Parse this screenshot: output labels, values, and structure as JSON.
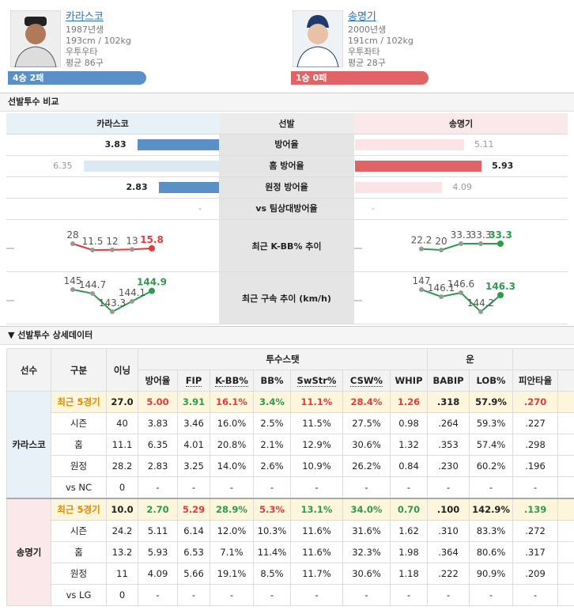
{
  "pitchers": [
    {
      "name": "카라스코",
      "born": "1987년생",
      "body": "193cm / 102kg",
      "hand": "우투우타",
      "avg_pitches": "평균 86구",
      "record": "4승 2패",
      "color": "#5b8fc7"
    },
    {
      "name": "송명기",
      "born": "2000년생",
      "body": "191cm / 102kg",
      "hand": "우투좌타",
      "avg_pitches": "평균 28구",
      "record": "1승 0패",
      "color": "#e06466"
    }
  ],
  "comparison": {
    "title": "선발투수 비교",
    "header": [
      "카라스코",
      "선발",
      "송명기"
    ],
    "rows": [
      {
        "label": "방어율",
        "left": 3.83,
        "right": 5.11
      },
      {
        "label": "홈 방어율",
        "left": 6.35,
        "right": 5.93
      },
      {
        "label": "원정 방어율",
        "left": 2.83,
        "right": 4.09
      },
      {
        "label": "vs 팀상대방어율",
        "left": "-",
        "right": "-"
      }
    ],
    "trends": [
      {
        "label": "최근 K-BB% 추이",
        "left": [
          28,
          11.5,
          12,
          13,
          15.8
        ],
        "right": [
          22.2,
          20,
          33.3,
          33.3,
          33.3
        ],
        "left_color": "#e03c3c",
        "right_color": "#2e9a4e"
      },
      {
        "label": "최근 구속 추이 (km/h)",
        "left": [
          145,
          144.7,
          143.3,
          144.1,
          144.9
        ],
        "right": [
          147,
          146.1,
          146.6,
          144.2,
          146.3
        ],
        "left_color": "#2e9a4e",
        "right_color": "#2e9a4e"
      }
    ]
  },
  "detail": {
    "title": "선발투수 상세데이터",
    "player_header": "선수",
    "group_headers": [
      "투수스탯",
      "운"
    ],
    "columns": [
      "구분",
      "이닝",
      "방어율",
      "FIP",
      "K-BB%",
      "BB%",
      "SwStr%",
      "CSW%",
      "WHIP",
      "BABIP",
      "LOB%",
      "피안타율"
    ],
    "groups": [
      {
        "player": "카라스코",
        "highlight": [
          null,
          null,
          "#e03c3c",
          "#2e9a4e",
          "#e03c3c",
          "#2e9a4e",
          "#e03c3c",
          "#e03c3c",
          "#e03c3c",
          null,
          null,
          "#e03c3c"
        ],
        "rows": [
          [
            "최근 5경기",
            "27.0",
            "5.00",
            "3.91",
            "16.1%",
            "3.4%",
            "11.1%",
            "28.4%",
            "1.26",
            ".318",
            "57.9%",
            ".270"
          ],
          [
            "시즌",
            "40",
            "3.83",
            "3.46",
            "16.0%",
            "2.5%",
            "11.5%",
            "27.5%",
            "0.98",
            ".264",
            "59.3%",
            ".227"
          ],
          [
            "홈",
            "11.1",
            "6.35",
            "4.01",
            "20.8%",
            "2.1%",
            "12.9%",
            "30.6%",
            "1.32",
            ".353",
            "57.4%",
            ".298"
          ],
          [
            "원정",
            "28.2",
            "2.83",
            "3.25",
            "14.0%",
            "2.6%",
            "10.9%",
            "26.2%",
            "0.84",
            ".230",
            "60.2%",
            ".196"
          ],
          [
            "vs NC",
            "0",
            "-",
            "-",
            "-",
            "-",
            "-",
            "-",
            "-",
            "-",
            "-",
            "-"
          ]
        ]
      },
      {
        "player": "송명기",
        "highlight": [
          null,
          null,
          "#2e9a4e",
          "#e03c3c",
          "#2e9a4e",
          "#e03c3c",
          "#2e9a4e",
          "#2e9a4e",
          "#2e9a4e",
          null,
          null,
          "#2e9a4e"
        ],
        "rows": [
          [
            "최근 5경기",
            "10.0",
            "2.70",
            "5.29",
            "28.9%",
            "5.3%",
            "13.1%",
            "34.0%",
            "0.70",
            ".100",
            "142.9%",
            ".139"
          ],
          [
            "시즌",
            "24.2",
            "5.11",
            "6.14",
            "12.0%",
            "10.3%",
            "11.6%",
            "31.6%",
            "1.62",
            ".310",
            "83.3%",
            ".272"
          ],
          [
            "홈",
            "13.2",
            "5.93",
            "6.53",
            "7.1%",
            "11.4%",
            "11.6%",
            "32.3%",
            "1.98",
            ".364",
            "80.6%",
            ".317"
          ],
          [
            "원정",
            "11",
            "4.09",
            "5.66",
            "19.1%",
            "8.5%",
            "11.7%",
            "30.6%",
            "1.18",
            ".222",
            "90.9%",
            ".209"
          ],
          [
            "vs LG",
            "0",
            "-",
            "-",
            "-",
            "-",
            "-",
            "-",
            "-",
            "-",
            "-",
            "-"
          ]
        ]
      }
    ]
  }
}
